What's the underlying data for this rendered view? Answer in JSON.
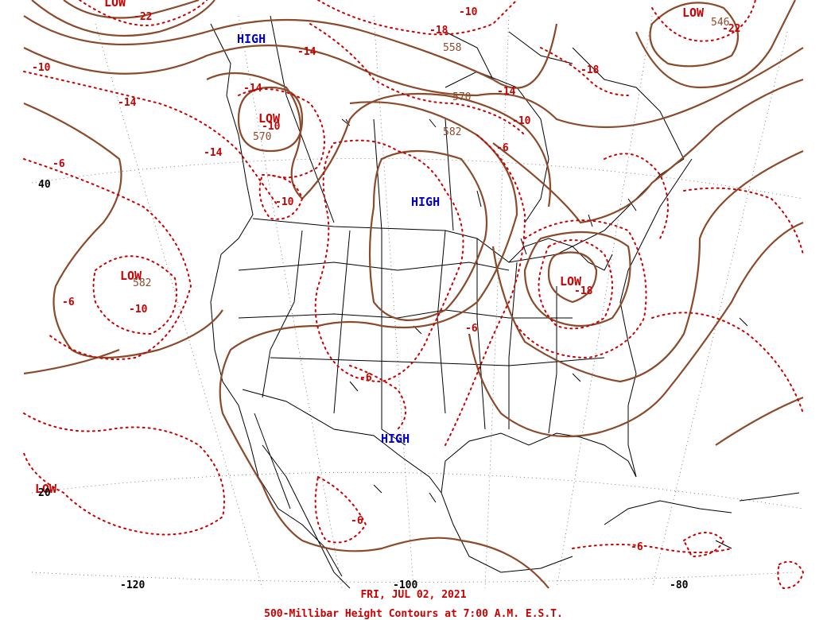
{
  "map": {
    "date_line": "FRI, JUL 02, 2021",
    "title_line": "500-Millibar Height Contours at 7:00 A.M. E.S.T.",
    "colors": {
      "height_contour": "#8b4a2b",
      "temperature_isotherm": "#cc0000",
      "high_label": "#0000cc",
      "low_label": "#cc0000",
      "border": "#000000"
    },
    "longitude_labels": [
      "-120",
      "-100",
      "-80"
    ],
    "latitude_labels": [
      "40",
      "20"
    ],
    "pressure_centers": [
      {
        "type": "HIGH",
        "text": "HIGH",
        "region": "british-columbia-coast"
      },
      {
        "type": "HIGH",
        "text": "HIGH",
        "region": "northern-plains"
      },
      {
        "type": "HIGH",
        "text": "HIGH",
        "region": "texas"
      },
      {
        "type": "LOW",
        "text": "LOW",
        "region": "pacific-northwest"
      },
      {
        "type": "LOW",
        "text": "LOW",
        "region": "eastern-pacific"
      },
      {
        "type": "LOW",
        "text": "LOW",
        "region": "great-lakes"
      },
      {
        "type": "LOW",
        "text": "LOW",
        "region": "north-atlantic"
      },
      {
        "type": "LOW",
        "text": "LOW",
        "region": "gulf-of-alaska"
      },
      {
        "type": "LOW",
        "text": "LOW",
        "region": "southwest-edge"
      }
    ],
    "height_labels": [
      "570",
      "582",
      "570",
      "582",
      "558",
      "546"
    ],
    "temperature_labels": [
      "-10",
      "-14",
      "-6",
      "-14",
      "-14",
      "-10",
      "-10",
      "-14",
      "-6",
      "-10",
      "-6",
      "-6",
      "-6",
      "-6",
      "-18",
      "-18",
      "-22",
      "-14",
      "-10",
      "-6",
      "-10",
      "-22",
      "-18"
    ]
  }
}
